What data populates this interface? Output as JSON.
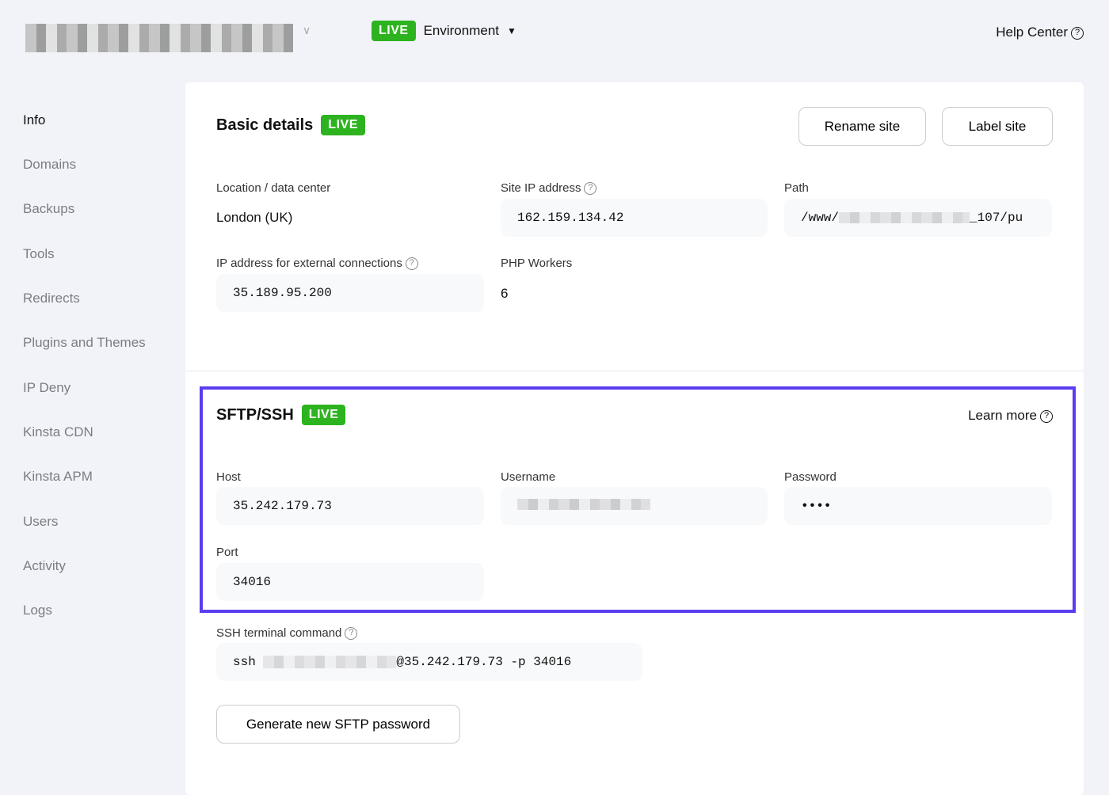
{
  "header": {
    "env_badge": "LIVE",
    "env_label": "Environment",
    "help": "Help Center"
  },
  "sidebar": {
    "items": [
      "Info",
      "Domains",
      "Backups",
      "Tools",
      "Redirects",
      "Plugins and Themes",
      "IP Deny",
      "Kinsta CDN",
      "Kinsta APM",
      "Users",
      "Activity",
      "Logs"
    ]
  },
  "basic": {
    "title": "Basic details",
    "badge": "LIVE",
    "rename": "Rename site",
    "label": "Label site",
    "location_label": "Location / data center",
    "location": "London (UK)",
    "ip_label": "Site IP address",
    "ip": "162.159.134.42",
    "path_label": "Path",
    "path_start": "/www/",
    "path_end": "_107/pu",
    "ext_label": "IP address for external connections",
    "ext": "35.189.95.200",
    "php_label": "PHP Workers",
    "php": "6"
  },
  "sftp": {
    "title": "SFTP/SSH",
    "badge": "LIVE",
    "learn": "Learn more",
    "host_label": "Host",
    "host": "35.242.179.73",
    "user_label": "Username",
    "pass_label": "Password",
    "pass": "••••",
    "port_label": "Port",
    "port": "34016",
    "ssh_label": "SSH terminal command",
    "ssh_start": "ssh",
    "ssh_end": "@35.242.179.73 -p 34016",
    "generate": "Generate new SFTP password"
  },
  "colors": {
    "live": "#2db31f",
    "highlight": "#5b3cf0"
  }
}
